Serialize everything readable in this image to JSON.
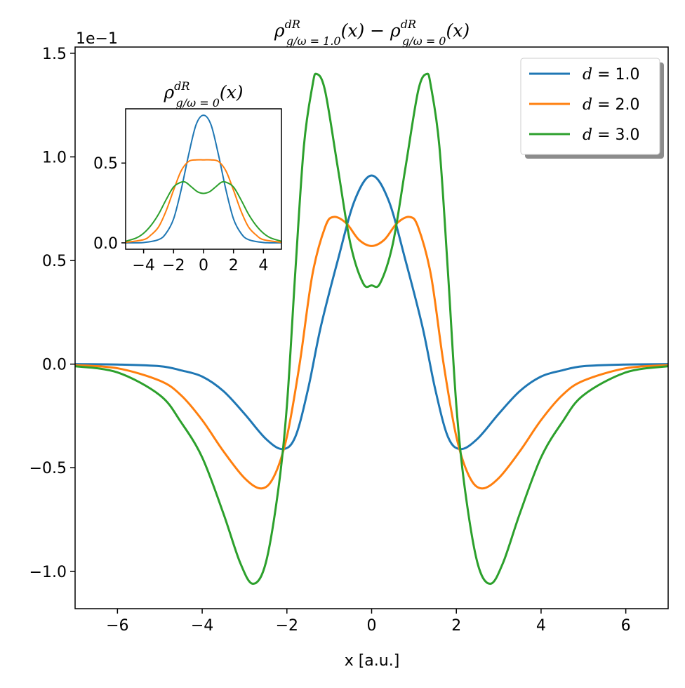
{
  "chart_data": [
    {
      "type": "line",
      "title": {
        "rho": "ρ",
        "sup": "dR",
        "sub": "g/ω = 1.0",
        "mid": "(x) − ",
        "rho2": "ρ",
        "sup2": "dR",
        "sub2": "g/ω = 0",
        "tail": "(x)"
      },
      "xlabel": "x [a.u.]",
      "ylabel": "",
      "offset_text": "1e−1",
      "xlim": [
        -7,
        7
      ],
      "ylim": [
        -1.18,
        1.53
      ],
      "xticks": [
        -6,
        -4,
        -2,
        0,
        2,
        4,
        6
      ],
      "xtick_labels": [
        "−6",
        "−4",
        "−2",
        "0",
        "2",
        "4",
        "6"
      ],
      "yticks": [
        -1.0,
        -0.5,
        0.0,
        0.5,
        1.0,
        1.5
      ],
      "ytick_labels": [
        "−1.0",
        "−0.5",
        "0.0",
        "0.5",
        "1.0",
        "1.5"
      ],
      "grid": false,
      "legend_position": "top-right",
      "series": [
        {
          "name": "d = 1.0",
          "legend_var": "d",
          "legend_val": " = 1.0",
          "color": "#1f77b4",
          "points": [
            [
              -7,
              0.0
            ],
            [
              -6,
              -0.002
            ],
            [
              -5,
              -0.01
            ],
            [
              -4.5,
              -0.03
            ],
            [
              -4,
              -0.06
            ],
            [
              -3.5,
              -0.13
            ],
            [
              -3,
              -0.24
            ],
            [
              -2.5,
              -0.36
            ],
            [
              -2.1,
              -0.41
            ],
            [
              -1.8,
              -0.35
            ],
            [
              -1.5,
              -0.12
            ],
            [
              -1.2,
              0.18
            ],
            [
              -0.8,
              0.5
            ],
            [
              -0.4,
              0.79
            ],
            [
              0,
              0.91
            ],
            [
              0.4,
              0.79
            ],
            [
              0.8,
              0.5
            ],
            [
              1.2,
              0.18
            ],
            [
              1.5,
              -0.12
            ],
            [
              1.8,
              -0.35
            ],
            [
              2.1,
              -0.41
            ],
            [
              2.5,
              -0.36
            ],
            [
              3,
              -0.24
            ],
            [
              3.5,
              -0.13
            ],
            [
              4,
              -0.06
            ],
            [
              4.5,
              -0.03
            ],
            [
              5,
              -0.01
            ],
            [
              6,
              -0.002
            ],
            [
              7,
              0.0
            ]
          ]
        },
        {
          "name": "d = 2.0",
          "legend_var": "d",
          "legend_val": " = 2.0",
          "color": "#ff7f0e",
          "points": [
            [
              -7,
              -0.005
            ],
            [
              -6,
              -0.02
            ],
            [
              -5,
              -0.08
            ],
            [
              -4.5,
              -0.15
            ],
            [
              -4,
              -0.27
            ],
            [
              -3.5,
              -0.42
            ],
            [
              -3,
              -0.55
            ],
            [
              -2.6,
              -0.6
            ],
            [
              -2.3,
              -0.54
            ],
            [
              -2,
              -0.35
            ],
            [
              -1.7,
              0.0
            ],
            [
              -1.4,
              0.43
            ],
            [
              -1.1,
              0.66
            ],
            [
              -0.9,
              0.71
            ],
            [
              -0.6,
              0.68
            ],
            [
              -0.3,
              0.6
            ],
            [
              0,
              0.57
            ],
            [
              0.3,
              0.6
            ],
            [
              0.6,
              0.68
            ],
            [
              0.9,
              0.71
            ],
            [
              1.1,
              0.66
            ],
            [
              1.4,
              0.43
            ],
            [
              1.7,
              0.0
            ],
            [
              2,
              -0.35
            ],
            [
              2.3,
              -0.54
            ],
            [
              2.6,
              -0.6
            ],
            [
              3,
              -0.55
            ],
            [
              3.5,
              -0.42
            ],
            [
              4,
              -0.27
            ],
            [
              4.5,
              -0.15
            ],
            [
              5,
              -0.08
            ],
            [
              6,
              -0.02
            ],
            [
              7,
              -0.005
            ]
          ]
        },
        {
          "name": "d = 3.0",
          "legend_var": "d",
          "legend_val": " = 3.0",
          "color": "#2ca02c",
          "points": [
            [
              -7,
              -0.01
            ],
            [
              -6,
              -0.04
            ],
            [
              -5,
              -0.15
            ],
            [
              -4.5,
              -0.28
            ],
            [
              -4,
              -0.45
            ],
            [
              -3.5,
              -0.72
            ],
            [
              -3.1,
              -0.96
            ],
            [
              -2.8,
              -1.06
            ],
            [
              -2.5,
              -0.96
            ],
            [
              -2.2,
              -0.6
            ],
            [
              -2.0,
              -0.2
            ],
            [
              -1.8,
              0.45
            ],
            [
              -1.6,
              1.05
            ],
            [
              -1.4,
              1.34
            ],
            [
              -1.3,
              1.4
            ],
            [
              -1.1,
              1.32
            ],
            [
              -0.8,
              0.95
            ],
            [
              -0.5,
              0.58
            ],
            [
              -0.2,
              0.39
            ],
            [
              0,
              0.38
            ],
            [
              0.2,
              0.39
            ],
            [
              0.5,
              0.58
            ],
            [
              0.8,
              0.95
            ],
            [
              1.1,
              1.32
            ],
            [
              1.3,
              1.4
            ],
            [
              1.4,
              1.34
            ],
            [
              1.6,
              1.05
            ],
            [
              1.8,
              0.45
            ],
            [
              2.0,
              -0.2
            ],
            [
              2.2,
              -0.6
            ],
            [
              2.5,
              -0.96
            ],
            [
              2.8,
              -1.06
            ],
            [
              3.1,
              -0.96
            ],
            [
              3.5,
              -0.72
            ],
            [
              4,
              -0.45
            ],
            [
              4.5,
              -0.28
            ],
            [
              5,
              -0.15
            ],
            [
              6,
              -0.04
            ],
            [
              7,
              -0.01
            ]
          ]
        }
      ]
    },
    {
      "type": "line",
      "title": {
        "rho": "ρ",
        "sup": "dR",
        "sub": "g/ω = 0",
        "tail": "(x)"
      },
      "xlim": [
        -5.2,
        5.2
      ],
      "ylim": [
        -0.04,
        0.84
      ],
      "xticks": [
        -4,
        -2,
        0,
        2,
        4
      ],
      "xtick_labels": [
        "−4",
        "−2",
        "0",
        "2",
        "4"
      ],
      "yticks": [
        0.0,
        0.5
      ],
      "ytick_labels": [
        "0.0",
        "0.5"
      ],
      "grid": false,
      "series": [
        {
          "color": "#1f77b4",
          "points": [
            [
              -5.2,
              0.0
            ],
            [
              -4,
              0.002
            ],
            [
              -3,
              0.02
            ],
            [
              -2.5,
              0.06
            ],
            [
              -2,
              0.15
            ],
            [
              -1.5,
              0.33
            ],
            [
              -1,
              0.55
            ],
            [
              -0.5,
              0.74
            ],
            [
              0,
              0.8
            ],
            [
              0.5,
              0.74
            ],
            [
              1,
              0.55
            ],
            [
              1.5,
              0.33
            ],
            [
              2,
              0.15
            ],
            [
              2.5,
              0.06
            ],
            [
              3,
              0.02
            ],
            [
              4,
              0.002
            ],
            [
              5.2,
              0.0
            ]
          ]
        },
        {
          "color": "#ff7f0e",
          "points": [
            [
              -5.2,
              0.003
            ],
            [
              -4,
              0.02
            ],
            [
              -3.5,
              0.05
            ],
            [
              -3,
              0.1
            ],
            [
              -2.5,
              0.2
            ],
            [
              -2,
              0.33
            ],
            [
              -1.5,
              0.45
            ],
            [
              -1,
              0.51
            ],
            [
              -0.5,
              0.52
            ],
            [
              0,
              0.52
            ],
            [
              0.5,
              0.52
            ],
            [
              1,
              0.51
            ],
            [
              1.5,
              0.45
            ],
            [
              2,
              0.33
            ],
            [
              2.5,
              0.2
            ],
            [
              3,
              0.1
            ],
            [
              3.5,
              0.05
            ],
            [
              4,
              0.02
            ],
            [
              5.2,
              0.003
            ]
          ]
        },
        {
          "color": "#2ca02c",
          "points": [
            [
              -5.2,
              0.01
            ],
            [
              -4.5,
              0.03
            ],
            [
              -4,
              0.06
            ],
            [
              -3.5,
              0.11
            ],
            [
              -3,
              0.18
            ],
            [
              -2.5,
              0.27
            ],
            [
              -2,
              0.35
            ],
            [
              -1.5,
              0.38
            ],
            [
              -1.2,
              0.38
            ],
            [
              -0.8,
              0.35
            ],
            [
              -0.4,
              0.32
            ],
            [
              0,
              0.31
            ],
            [
              0.4,
              0.32
            ],
            [
              0.8,
              0.35
            ],
            [
              1.2,
              0.38
            ],
            [
              1.5,
              0.38
            ],
            [
              2,
              0.35
            ],
            [
              2.5,
              0.27
            ],
            [
              3,
              0.18
            ],
            [
              3.5,
              0.11
            ],
            [
              4,
              0.06
            ],
            [
              4.5,
              0.03
            ],
            [
              5.2,
              0.01
            ]
          ]
        }
      ]
    }
  ]
}
